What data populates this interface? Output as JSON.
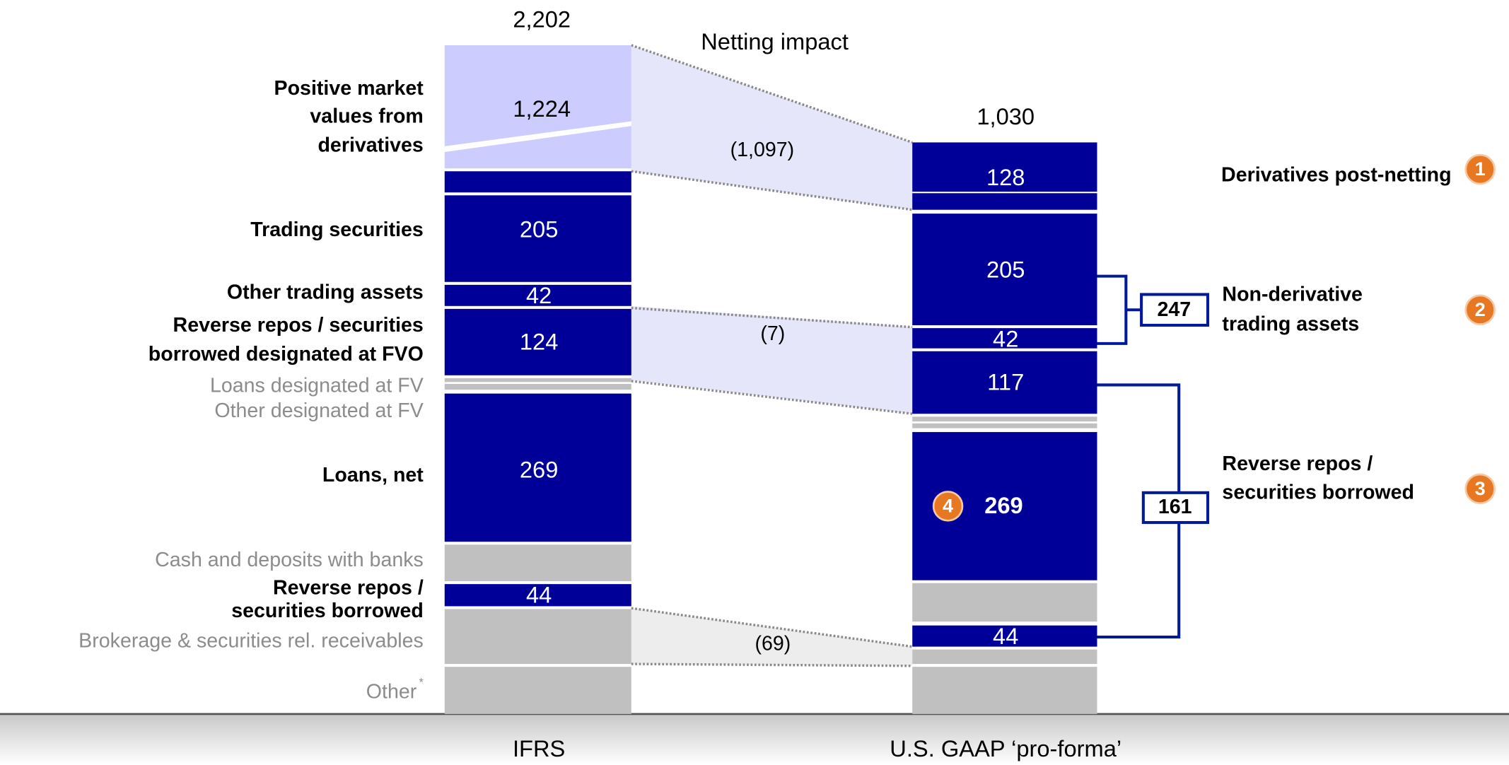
{
  "netting_title": "Netting impact",
  "ifrs": {
    "label": "IFRS",
    "total": "2,202",
    "values": [
      "1,224",
      "205",
      "42",
      "124",
      "269",
      "44"
    ]
  },
  "us_gaap": {
    "label": "U.S. GAAP ‘pro-forma’",
    "total": "1,030",
    "values": [
      "128",
      "205",
      "42",
      "117",
      "269",
      "44"
    ]
  },
  "netting": [
    "(1,097)",
    "(7)",
    "(69)"
  ],
  "left_labels": [
    {
      "lines": [
        "Positive market",
        "values from",
        "derivatives"
      ]
    },
    {
      "lines": [
        "Trading securities"
      ]
    },
    {
      "lines": [
        "Other trading assets"
      ]
    },
    {
      "lines": [
        "Reverse repos / securities",
        "borrowed designated at FVO"
      ]
    },
    {
      "lines": [
        "Loans designated at FV"
      ]
    },
    {
      "lines": [
        "Other designated at FV"
      ]
    },
    {
      "lines": [
        "Loans, net"
      ]
    },
    {
      "lines": [
        "Cash and deposits with banks"
      ]
    },
    {
      "lines": [
        "Reverse repos /",
        "securities borrowed"
      ]
    },
    {
      "lines": [
        "Brokerage & securities rel. receivables"
      ]
    },
    {
      "lines": [
        "Other"
      ],
      "footnote": "*"
    }
  ],
  "right_labels": [
    {
      "lines": [
        "Derivatives post-netting"
      ],
      "badge": "1"
    },
    {
      "lines": [
        "Non-derivative",
        "trading assets"
      ],
      "badge": "2",
      "bracket": "247"
    },
    {
      "lines": [
        "Reverse repos /",
        "securities borrowed"
      ],
      "badge": "3",
      "bracket": "161"
    }
  ],
  "loans_badge": "4"
}
